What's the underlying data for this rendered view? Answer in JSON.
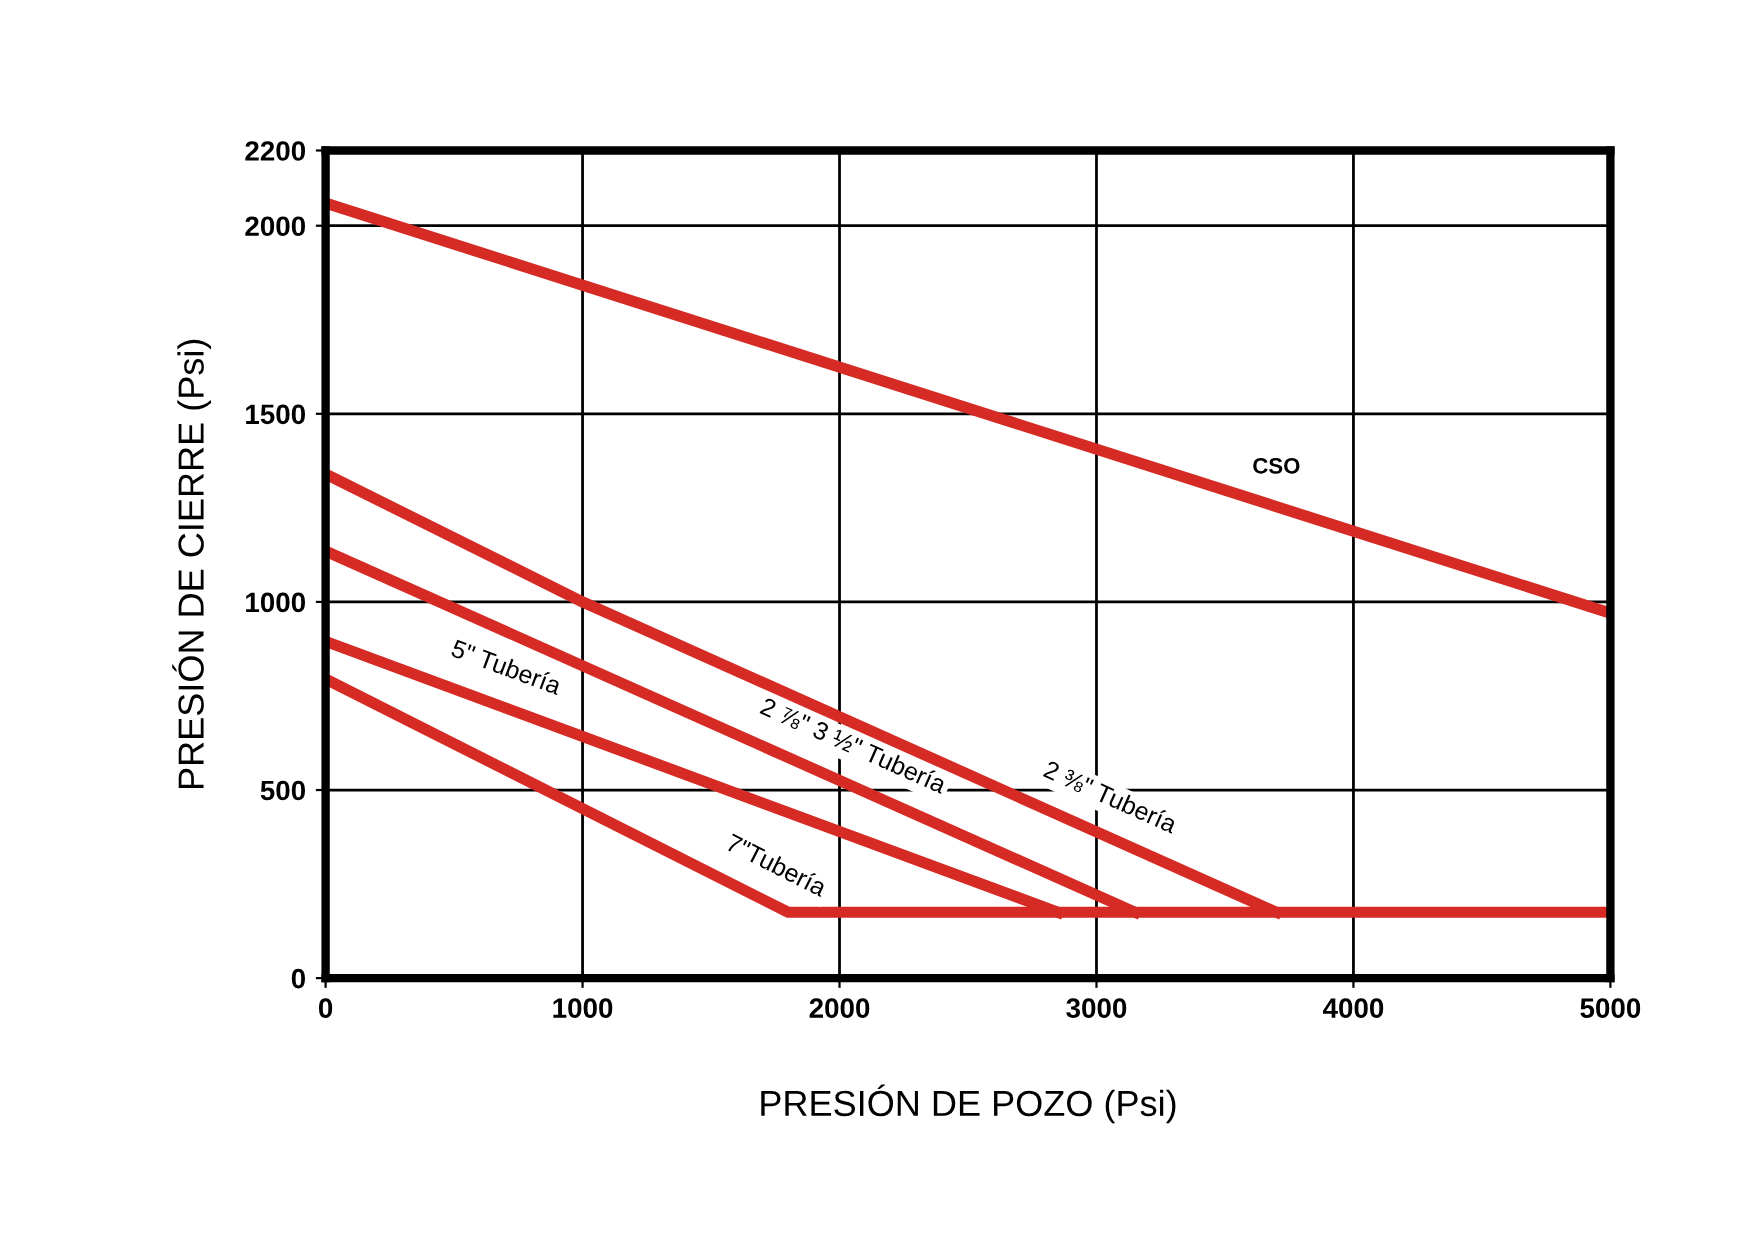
{
  "chart_data": {
    "type": "line",
    "xlabel": "PRESIÓN DE POZO (Psi)",
    "ylabel": "PRESIÓN DE CIERRE (Psi)",
    "xlim": [
      0,
      5000
    ],
    "ylim": [
      0,
      2200
    ],
    "xticks": [
      0,
      1000,
      2000,
      3000,
      4000,
      5000
    ],
    "yticks": [
      0,
      500,
      1000,
      1500,
      2000,
      2200
    ],
    "grid": true,
    "marker": "none",
    "line_style": "solid",
    "series": [
      {
        "name": "CSO",
        "color": "#d62a25",
        "x": [
          0,
          5000
        ],
        "values": [
          2060,
          970
        ]
      },
      {
        "name": "2 ⅜\" Tubería",
        "color": "#d62a25",
        "x": [
          0,
          1000,
          3700
        ],
        "values": [
          1340,
          1000,
          175
        ]
      },
      {
        "name": "2 ⅞\" 3 ½\" Tubería",
        "color": "#d62a25",
        "x": [
          0,
          3150
        ],
        "values": [
          1135,
          175
        ]
      },
      {
        "name": "5\" Tubería",
        "color": "#d62a25",
        "x": [
          0,
          2850
        ],
        "values": [
          895,
          175
        ]
      },
      {
        "name": "7\"Tubería",
        "color": "#d62a25",
        "x": [
          0,
          1800,
          5000
        ],
        "values": [
          795,
          175,
          175
        ]
      }
    ]
  }
}
